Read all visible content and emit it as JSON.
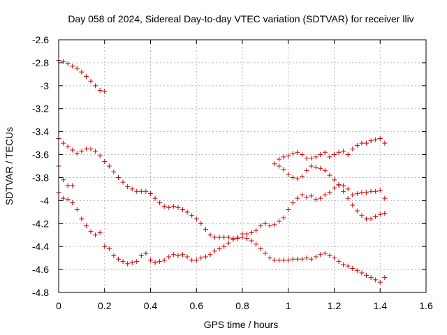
{
  "chart_data": {
    "type": "scatter",
    "title": "Day 058 of 2024, Sidereal Day-to-day VTEC variation (SDTVAR) for receiver lliv",
    "xlabel": "GPS time / hours",
    "ylabel": "SDTVAR / TECUs",
    "xlim": [
      0,
      1.6
    ],
    "ylim": [
      -4.8,
      -2.6
    ],
    "xticks": [
      0,
      0.2,
      0.4,
      0.6,
      0.8,
      1,
      1.2,
      1.4,
      1.6
    ],
    "yticks": [
      -4.8,
      -4.6,
      -4.4,
      -4.2,
      -4,
      -3.8,
      -3.6,
      -3.4,
      -3.2,
      -3,
      -2.8,
      -2.6
    ],
    "grid": true,
    "legend": "none",
    "marker": "plus",
    "color": "#cc0000",
    "series": [
      {
        "x": [
          0,
          0.02,
          0.04,
          0.06,
          0.08,
          0.1,
          0.12,
          0.14,
          0.16,
          0.18,
          0.2
        ],
        "y": [
          -2.78,
          -2.79,
          -2.81,
          -2.83,
          -2.85,
          -2.88,
          -2.92,
          -2.96,
          -3.0,
          -3.04,
          -3.05
        ]
      },
      {
        "x": [
          0,
          0.02,
          0.04,
          0.06,
          0.08,
          0.1,
          0.12,
          0.14,
          0.16,
          0.18,
          0.2,
          0.22,
          0.24,
          0.26,
          0.28,
          0.3,
          0.32,
          0.34,
          0.36,
          0.38,
          0.4,
          0.42,
          0.44,
          0.46,
          0.48,
          0.5,
          0.52,
          0.54,
          0.56,
          0.58,
          0.6,
          0.62,
          0.64,
          0.66,
          0.68,
          0.7,
          0.72,
          0.74,
          0.76,
          0.78,
          0.8,
          0.82,
          0.84,
          0.86,
          0.88,
          0.9,
          0.92,
          0.94,
          0.96,
          0.98,
          1.0,
          1.02,
          1.04,
          1.06,
          1.08,
          1.1,
          1.12,
          1.14,
          1.16,
          1.18,
          1.2,
          1.22,
          1.24,
          1.26,
          1.28,
          1.3,
          1.32,
          1.34,
          1.36,
          1.38,
          1.4,
          1.42
        ],
        "y": [
          -3.46,
          -3.5,
          -3.53,
          -3.56,
          -3.59,
          -3.57,
          -3.55,
          -3.55,
          -3.57,
          -3.61,
          -3.66,
          -3.7,
          -3.75,
          -3.8,
          -3.84,
          -3.88,
          -3.9,
          -3.92,
          -3.92,
          -3.92,
          -3.94,
          -3.98,
          -4.02,
          -4.05,
          -4.06,
          -4.05,
          -4.06,
          -4.08,
          -4.1,
          -4.13,
          -4.16,
          -4.2,
          -4.25,
          -4.3,
          -4.32,
          -4.32,
          -4.32,
          -4.32,
          -4.33,
          -4.33,
          -4.32,
          -4.33,
          -4.35,
          -4.38,
          -4.42,
          -4.46,
          -4.5,
          -4.52,
          -4.52,
          -4.52,
          -4.52,
          -4.51,
          -4.51,
          -4.51,
          -4.5,
          -4.51,
          -4.49,
          -4.47,
          -4.46,
          -4.48,
          -4.5,
          -4.53,
          -4.56,
          -4.57,
          -4.59,
          -4.61,
          -4.63,
          -4.65,
          -4.67,
          -4.69,
          -4.71,
          -4.67
        ]
      },
      {
        "x": [
          0,
          0.02,
          0.04,
          0.06,
          0.08,
          0.1,
          0.12,
          0.14,
          0.16,
          0.18,
          0.2,
          0.22,
          0.24,
          0.26,
          0.28,
          0.3,
          0.32,
          0.34,
          0.36,
          0.38,
          0.4,
          0.42,
          0.44,
          0.46,
          0.48,
          0.5,
          0.52,
          0.54,
          0.56,
          0.58,
          0.6,
          0.62,
          0.64,
          0.66,
          0.68,
          0.7,
          0.72,
          0.74,
          0.76,
          0.78,
          0.8,
          0.82,
          0.84,
          0.86,
          0.88,
          0.9,
          0.92,
          0.94,
          0.96,
          0.98,
          1.0,
          1.02,
          1.04,
          1.06,
          1.08,
          1.1,
          1.12,
          1.14,
          1.16,
          1.18,
          1.2,
          1.22,
          1.24,
          1.26,
          1.28,
          1.3,
          1.32,
          1.34,
          1.36,
          1.38,
          1.4,
          1.42
        ],
        "y": [
          -3.93,
          -3.98,
          -3.99,
          -4.02,
          -4.08,
          -4.16,
          -4.22,
          -4.27,
          -4.3,
          -4.28,
          -4.4,
          -4.42,
          -4.48,
          -4.51,
          -4.53,
          -4.55,
          -4.54,
          -4.53,
          -4.48,
          -4.46,
          -4.52,
          -4.54,
          -4.53,
          -4.52,
          -4.49,
          -4.47,
          -4.48,
          -4.47,
          -4.49,
          -4.52,
          -4.52,
          -4.5,
          -4.49,
          -4.47,
          -4.44,
          -4.42,
          -4.4,
          -4.37,
          -4.34,
          -4.32,
          -4.29,
          -4.29,
          -4.28,
          -4.26,
          -4.22,
          -4.2,
          -4.22,
          -4.21,
          -4.18,
          -4.15,
          -4.08,
          -4.02,
          -3.98,
          -3.95,
          -3.97,
          -3.96,
          -3.99,
          -3.98,
          -3.95,
          -3.93,
          -3.89,
          -3.87,
          -3.87,
          -3.9,
          -3.95,
          -3.94,
          -3.93,
          -3.93,
          -3.92,
          -3.92,
          -3.91,
          -3.98
        ]
      },
      {
        "x": [
          0,
          0.02,
          0.04,
          0.06
        ],
        "y": [
          -3.7,
          -3.82,
          -3.87,
          -3.87
        ]
      },
      {
        "x": [
          0.94,
          0.96,
          0.98,
          1.0,
          1.02,
          1.04,
          1.06,
          1.08,
          1.1,
          1.12,
          1.14,
          1.16,
          1.18,
          1.2,
          1.22,
          1.24,
          1.26,
          1.28,
          1.3,
          1.32,
          1.34,
          1.36,
          1.38,
          1.4,
          1.42
        ],
        "y": [
          -3.68,
          -3.7,
          -3.73,
          -3.77,
          -3.8,
          -3.81,
          -3.79,
          -3.74,
          -3.7,
          -3.71,
          -3.72,
          -3.74,
          -3.78,
          -3.82,
          -3.86,
          -3.92,
          -3.98,
          -4.04,
          -4.09,
          -4.13,
          -4.16,
          -4.16,
          -4.14,
          -4.12,
          -4.11
        ]
      },
      {
        "x": [
          0.96,
          0.98,
          1.0,
          1.02,
          1.04,
          1.06,
          1.08,
          1.1,
          1.12,
          1.14,
          1.16,
          1.18,
          1.2,
          1.22,
          1.24,
          1.26,
          1.28,
          1.3,
          1.32,
          1.34,
          1.36,
          1.38,
          1.4,
          1.42
        ],
        "y": [
          -3.64,
          -3.62,
          -3.61,
          -3.59,
          -3.58,
          -3.6,
          -3.63,
          -3.63,
          -3.62,
          -3.6,
          -3.58,
          -3.62,
          -3.6,
          -3.58,
          -3.57,
          -3.6,
          -3.55,
          -3.52,
          -3.5,
          -3.5,
          -3.48,
          -3.47,
          -3.46,
          -3.5
        ]
      }
    ]
  }
}
